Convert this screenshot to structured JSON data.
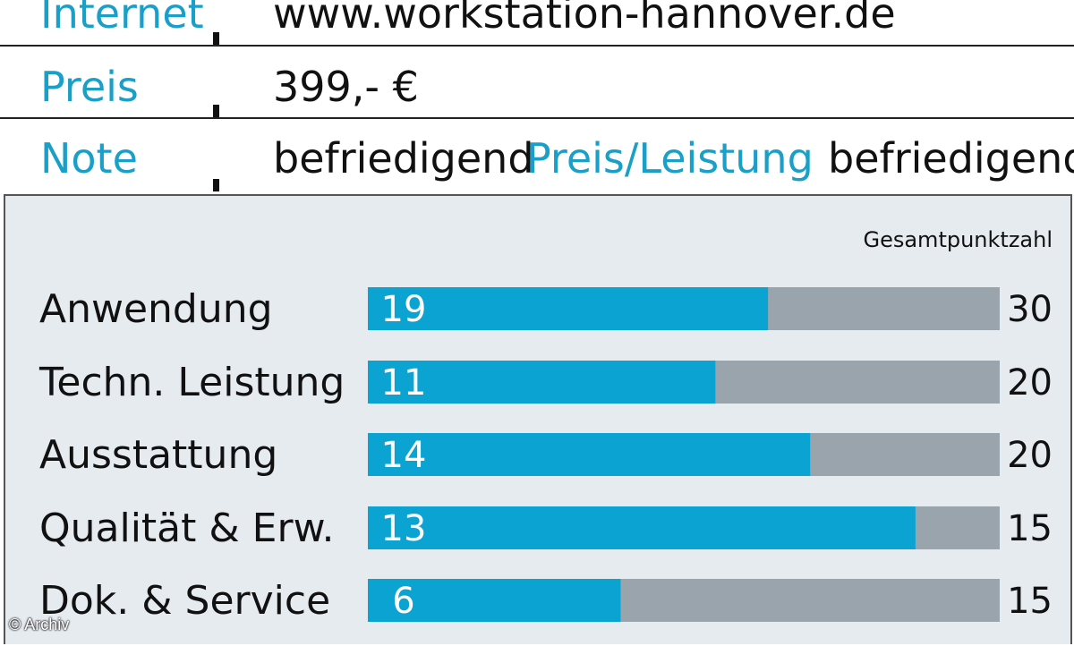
{
  "info": {
    "internet_label": "Internet",
    "internet_value": "www.workstation-hannover.de",
    "price_label": "Preis",
    "price_value": "399,- €",
    "grade_label": "Note",
    "grade_value": "befriedigend",
    "pl_label": "Preis/Leistung",
    "pl_value": "befriedigend"
  },
  "chart_data": {
    "type": "bar",
    "header": "Gesamtpunktzahl",
    "categories": [
      "Anwendung",
      "Techn. Leistung",
      "Ausstattung",
      "Qualität & Erw.",
      "Dok. & Service"
    ],
    "values": [
      19,
      11,
      14,
      13,
      6
    ],
    "max_values": [
      30,
      20,
      20,
      15,
      15
    ],
    "orientation": "horizontal",
    "colors": {
      "bar": "#0ba3d2",
      "track": "#9aa4ad",
      "accent_text": "#1aa0c8"
    }
  },
  "copyright": "© Archiv"
}
